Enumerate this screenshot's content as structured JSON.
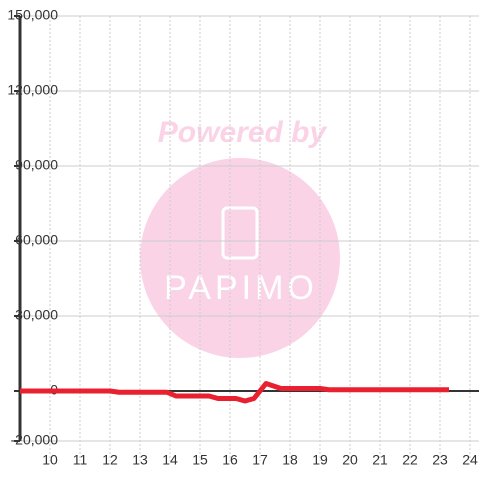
{
  "chart_data": {
    "type": "line",
    "watermark": {
      "top": "Powered by",
      "brand": "PAPIMO"
    },
    "x": [
      9,
      10,
      11,
      12,
      12.3,
      13,
      13.9,
      14.2,
      15.3,
      15.6,
      16.2,
      16.5,
      16.8,
      17.2,
      17.7,
      18.5,
      19,
      19.3,
      20,
      21,
      22,
      23.3
    ],
    "series": [
      {
        "color": "#e8202f",
        "values": [
          0,
          0,
          0,
          0,
          -500,
          -500,
          -500,
          -2000,
          -2000,
          -3000,
          -3000,
          -4000,
          -3000,
          3000,
          1000,
          1000,
          1000,
          500,
          500,
          500,
          500,
          500
        ]
      }
    ],
    "xlim": [
      9,
      24.3
    ],
    "xticks": [
      10,
      11,
      12,
      13,
      14,
      15,
      16,
      17,
      18,
      19,
      20,
      21,
      22,
      23,
      24
    ],
    "ylim": [
      -20000,
      150000
    ],
    "yticks": [
      {
        "value": -20000,
        "label": "-20,000"
      },
      0,
      {
        "value": 30000,
        "label": "30,000"
      },
      {
        "value": 60000,
        "label": "60,000"
      },
      {
        "value": 90000,
        "label": "90,000"
      },
      {
        "value": 120000,
        "label": "120,000"
      },
      {
        "value": 150000,
        "label": "150,000"
      }
    ],
    "grid": true
  }
}
